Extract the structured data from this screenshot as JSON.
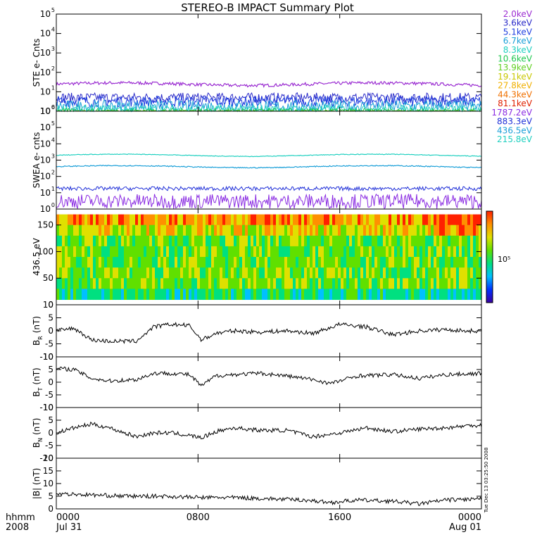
{
  "chart_data": {
    "title": "STEREO-B IMPACT Summary Plot",
    "timestamp_label": "Tue Dec 13 03:25:50 2008",
    "x_axis": {
      "row_label": "hhmm",
      "year_label": "2008",
      "ticks": [
        {
          "hours": 0,
          "label": "0000",
          "sublabel": "Jul 31"
        },
        {
          "hours": 8,
          "label": "0800",
          "sublabel": ""
        },
        {
          "hours": 16,
          "label": "1600",
          "sublabel": ""
        },
        {
          "hours": 24,
          "label": "0000",
          "sublabel": "Aug 01"
        }
      ],
      "range_hours": [
        0,
        24
      ]
    },
    "panels": [
      {
        "id": "ste",
        "type": "line",
        "ylabel": "STE e- Cnts",
        "yscale": "log",
        "ylim_exp": [
          0,
          5
        ],
        "tick_exps": [
          0,
          1,
          2,
          3,
          4,
          5
        ],
        "series": [
          {
            "name": "2.0keV",
            "color": "#9a2bd1",
            "level": 25,
            "noise": 0.08,
            "style": "smooth"
          },
          {
            "name": "3.6keV",
            "color": "#2a2ac8",
            "level": 5,
            "noise": 0.25,
            "style": "noisy"
          },
          {
            "name": "5.1keV",
            "color": "#1f3ee0",
            "level": 3.2,
            "noise": 0.28,
            "style": "noisy"
          },
          {
            "name": "6.7keV",
            "color": "#1a9fd8",
            "level": 1.8,
            "noise": 0.3,
            "style": "noisy"
          },
          {
            "name": "8.3keV",
            "color": "#1fd0c0",
            "level": 1.3,
            "noise": 0.2,
            "style": "noisy"
          },
          {
            "name": "10.6keV",
            "color": "#20c850",
            "level": 1.05,
            "noise": 0.12,
            "style": "noisy"
          },
          {
            "name": "13.9keV",
            "color": "#60d020",
            "level": 1.0,
            "noise": 0.05,
            "style": "noisy"
          },
          {
            "name": "19.1keV",
            "color": "#c8c800",
            "level": null
          },
          {
            "name": "27.8keV",
            "color": "#f0b000",
            "level": null
          },
          {
            "name": "44.3keV",
            "color": "#f07000",
            "level": null
          },
          {
            "name": "81.1keV",
            "color": "#e02000",
            "level": null
          }
        ]
      },
      {
        "id": "swea",
        "type": "line",
        "ylabel": "SWEA e- cnts",
        "yscale": "log",
        "ylim_exp": [
          0,
          6
        ],
        "tick_exps": [
          0,
          1,
          2,
          3,
          4,
          5,
          6
        ],
        "series": [
          {
            "name": "1787.2eV",
            "color": "#8a2be2",
            "level": 3,
            "noise": 0.45,
            "style": "noisy"
          },
          {
            "name": "883.3eV",
            "color": "#1f2fd8",
            "level": 18,
            "noise": 0.12,
            "style": "noisy"
          },
          {
            "name": "436.5eV",
            "color": "#1a9fd8",
            "level": 400,
            "noise": 0.03,
            "style": "smooth"
          },
          {
            "name": "215.8eV",
            "color": "#20d0c0",
            "level": 2000,
            "noise": 0.02,
            "style": "smooth"
          }
        ]
      },
      {
        "id": "pad",
        "type": "heatmap",
        "ylabel": "436.5 eV",
        "ylim": [
          0,
          180
        ],
        "ticks": [
          0,
          50,
          100,
          150
        ],
        "colorbar_label": "10⁵",
        "colorbar_colors": [
          "#3a00a0",
          "#0030ff",
          "#00c0ff",
          "#00e080",
          "#60e000",
          "#e0e000",
          "#ff9000",
          "#ff2000"
        ]
      },
      {
        "id": "br",
        "type": "line",
        "ylabel": "B",
        "ylabel_sub": "R",
        "yunit": "(nT)",
        "ylim": [
          -10,
          10
        ],
        "ticks": [
          -10,
          -5,
          0,
          5,
          10
        ],
        "series": [
          {
            "name": "BR",
            "color": "#000000",
            "nodes_hours": [
              0,
              1,
              2,
              3,
              4.5,
              5.5,
              6.5,
              7.5,
              8.2,
              9,
              10,
              11.5,
              13,
              14.5,
              16,
              17.5,
              19,
              20.5,
              22,
              23,
              24
            ],
            "nodes_values": [
              0,
              1,
              -3.5,
              -4,
              -4,
              1.5,
              2.5,
              2,
              -3.5,
              -1,
              0,
              -0.5,
              0,
              -1,
              2.5,
              1.5,
              -1.5,
              0,
              0.5,
              0,
              0
            ]
          }
        ]
      },
      {
        "id": "bt",
        "type": "line",
        "ylabel": "B",
        "ylabel_sub": "T",
        "yunit": "(nT)",
        "ylim": [
          -10,
          10
        ],
        "ticks": [
          -10,
          -5,
          0,
          5,
          10
        ],
        "series": [
          {
            "name": "BT",
            "color": "#000000",
            "nodes_hours": [
              0,
              1,
              2,
              3,
              4.5,
              5.5,
              6.5,
              7.5,
              8.2,
              9,
              10,
              11.5,
              13,
              14.5,
              15.5,
              17,
              19,
              20.5,
              22,
              24
            ],
            "nodes_values": [
              5.5,
              5,
              1.5,
              0.5,
              1,
              3.5,
              3.5,
              3,
              -1.5,
              2.5,
              3,
              3.5,
              2.5,
              1,
              -0.5,
              2.5,
              3,
              1.5,
              3,
              3.5
            ]
          }
        ]
      },
      {
        "id": "bn",
        "type": "line",
        "ylabel": "B",
        "ylabel_sub": "N",
        "yunit": "(nT)",
        "ylim": [
          -10,
          10
        ],
        "ticks": [
          -10,
          -5,
          0,
          5,
          10
        ],
        "series": [
          {
            "name": "BN",
            "color": "#000000",
            "nodes_hours": [
              0,
              1,
              2,
              3,
              4.5,
              5.5,
              6.5,
              7.5,
              8.2,
              9,
              10,
              11.5,
              13,
              14.5,
              16,
              17.5,
              19,
              20.5,
              22,
              23.5,
              24
            ],
            "nodes_values": [
              0,
              2,
              3.5,
              2,
              -1.5,
              0,
              0,
              -1,
              -2,
              0.5,
              2,
              1,
              1,
              -1.5,
              0,
              2,
              0.5,
              1.5,
              2,
              3,
              3
            ]
          }
        ]
      },
      {
        "id": "bmag",
        "type": "line",
        "ylabel": "|B| (nT)",
        "ylim": [
          0,
          20
        ],
        "ticks": [
          0,
          5,
          10,
          15,
          20
        ],
        "series": [
          {
            "name": "|B|",
            "color": "#000000",
            "nodes_hours": [
              0,
              2,
              4,
              6,
              8,
              10,
              12,
              14,
              15.5,
              17,
              19,
              20.5,
              22,
              24
            ],
            "nodes_values": [
              6,
              5.5,
              5,
              5,
              4.5,
              4.5,
              4,
              3.5,
              2.5,
              3.5,
              3,
              2,
              3.5,
              4
            ]
          }
        ]
      }
    ]
  }
}
